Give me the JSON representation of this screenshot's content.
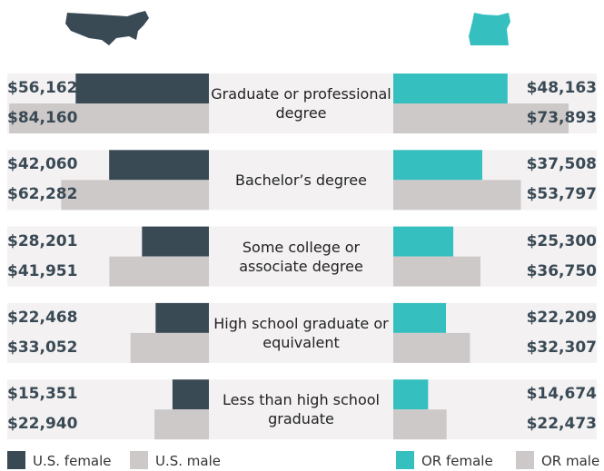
{
  "chart_data": {
    "type": "butterfly",
    "categories": [
      "Graduate or professional degree",
      "Bachelor’s degree",
      "Some college or associate degree",
      "High school graduate or equivalent",
      "Less than high school graduate"
    ],
    "xlim": [
      0,
      85000
    ],
    "series": [
      {
        "name": "U.S. female",
        "color": "#3a4a55",
        "side": "left",
        "values": [
          56162,
          42060,
          28201,
          22468,
          15351
        ],
        "value_labels": [
          "$56,162",
          "$42,060",
          "$28,201",
          "$22,468",
          "$15,351"
        ]
      },
      {
        "name": "U.S. male",
        "color": "#cdc9c9",
        "side": "left",
        "values": [
          84160,
          62282,
          41951,
          33052,
          22940
        ],
        "value_labels": [
          "$84,160",
          "$62,282",
          "$41,951",
          "$33,052",
          "$22,940"
        ]
      },
      {
        "name": "OR female",
        "color": "#35bfbf",
        "side": "right",
        "values": [
          48163,
          37508,
          25300,
          22209,
          14674
        ],
        "value_labels": [
          "$48,163",
          "$37,508",
          "$25,300",
          "$22,209",
          "$14,674"
        ]
      },
      {
        "name": "OR male",
        "color": "#cdc9c9",
        "side": "right",
        "values": [
          73893,
          53797,
          36750,
          32307,
          22473
        ],
        "value_labels": [
          "$73,893",
          "$53,797",
          "$36,750",
          "$32,307",
          "$22,473"
        ]
      }
    ]
  }
}
